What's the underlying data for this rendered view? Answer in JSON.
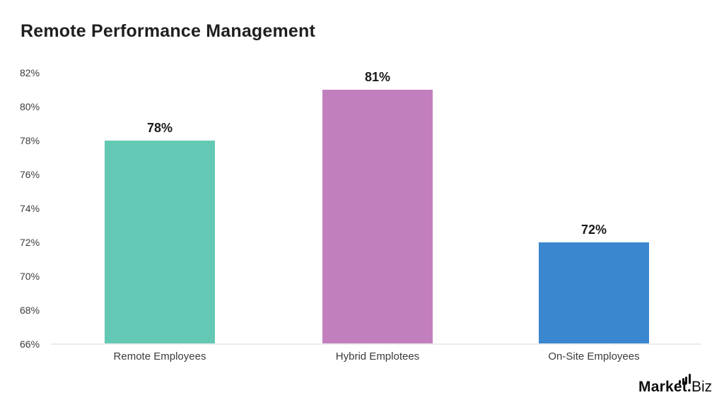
{
  "chart_data": {
    "type": "bar",
    "title": "Remote Performance Management",
    "categories": [
      "Remote Employees",
      "Hybrid Emplotees",
      "On-Site Employees"
    ],
    "values": [
      78,
      81,
      72
    ],
    "value_labels": [
      "78%",
      "81%",
      "72%"
    ],
    "bar_colors": [
      "#64C9B4",
      "#C180BD",
      "#3A86CF"
    ],
    "xlabel": "",
    "ylabel": "",
    "ylim": [
      66,
      82
    ],
    "ytick_step": 2,
    "ytick_labels": [
      "82%",
      "80%",
      "78%",
      "76%",
      "74%",
      "72%",
      "70%",
      "68%",
      "66%"
    ],
    "grid": false,
    "legend": "none",
    "baseline_color": "#ececec",
    "title_color": "#1f1f1f",
    "tick_color": "#3c3c3c"
  },
  "branding": {
    "logo_primary": "Market.",
    "logo_secondary": "Biz",
    "logo_icon": "ascending-bars-icon",
    "logo_color": "#0d0d0d"
  }
}
